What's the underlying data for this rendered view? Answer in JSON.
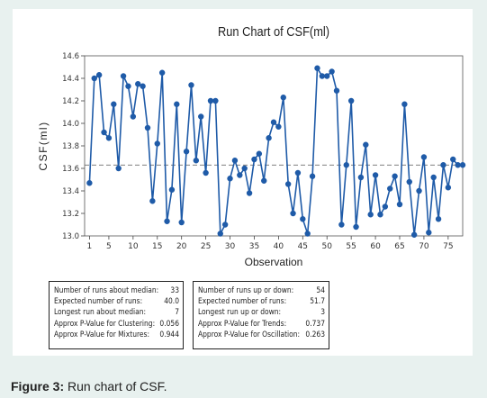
{
  "chart_data": {
    "type": "line",
    "title": "Run Chart of CSF(ml)",
    "xlabel": "Observation",
    "ylabel": "CSF(ml)",
    "xlim": [
      0,
      78
    ],
    "ylim": [
      13.0,
      14.6
    ],
    "xticks": [
      "1",
      "5",
      "10",
      "15",
      "20",
      "25",
      "30",
      "35",
      "40",
      "45",
      "50",
      "55",
      "60",
      "65",
      "70",
      "75"
    ],
    "xtick_values": [
      1,
      5,
      10,
      15,
      20,
      25,
      30,
      35,
      40,
      45,
      50,
      55,
      60,
      65,
      70,
      75
    ],
    "yticks": [
      "13.0",
      "13.2",
      "13.4",
      "13.6",
      "13.8",
      "14.0",
      "14.2",
      "14.4",
      "14.6"
    ],
    "ytick_values": [
      13.0,
      13.2,
      13.4,
      13.6,
      13.8,
      14.0,
      14.2,
      14.4,
      14.6
    ],
    "median": 13.63,
    "grid": false,
    "series": [
      {
        "color": "#1f5ba8",
        "x": [
          1,
          2,
          3,
          4,
          5,
          6,
          7,
          8,
          9,
          10,
          11,
          12,
          13,
          14,
          15,
          16,
          17,
          18,
          19,
          20,
          21,
          22,
          23,
          24,
          25,
          26,
          27,
          28,
          29,
          30,
          31,
          32,
          33,
          34,
          35,
          36,
          37,
          38,
          39,
          40,
          41,
          42,
          43,
          44,
          45,
          46,
          47,
          48,
          49,
          50,
          51,
          52,
          53,
          54,
          55,
          56,
          57,
          58,
          59,
          60,
          61,
          62,
          63,
          64,
          65,
          66,
          67,
          68,
          69,
          70,
          71,
          72,
          73,
          74,
          75,
          76,
          77,
          78
        ],
        "values": [
          13.47,
          14.4,
          14.43,
          13.92,
          13.87,
          14.17,
          13.6,
          14.42,
          14.33,
          14.06,
          14.35,
          14.33,
          13.96,
          13.31,
          13.82,
          14.45,
          13.13,
          13.41,
          14.17,
          13.12,
          13.75,
          14.34,
          13.67,
          14.06,
          13.56,
          14.2,
          14.2,
          13.02,
          13.1,
          13.51,
          13.67,
          13.54,
          13.6,
          13.38,
          13.68,
          13.73,
          13.49,
          13.87,
          14.01,
          13.97,
          14.23,
          13.46,
          13.2,
          13.56,
          13.15,
          13.02,
          13.53,
          14.49,
          14.42,
          14.42,
          14.46,
          14.29,
          13.1,
          13.63,
          14.2,
          13.08,
          13.52,
          13.81,
          13.19,
          13.54,
          13.19,
          13.26,
          13.42,
          13.53,
          13.28,
          14.17,
          13.48,
          13.01,
          13.4,
          13.7,
          13.03,
          13.52,
          13.15,
          13.63,
          13.43,
          13.68,
          13.63,
          13.63
        ]
      }
    ]
  },
  "stats": {
    "left": [
      {
        "label": "Number of runs about median:",
        "value": "33"
      },
      {
        "label": "Expected number of runs:",
        "value": "40.0"
      },
      {
        "label": "Longest run about median:",
        "value": "7"
      },
      {
        "label": "Approx P-Value for Clustering:",
        "value": "0.056"
      },
      {
        "label": "Approx P-Value for Mixtures:",
        "value": "0.944"
      }
    ],
    "right": [
      {
        "label": "Number of runs up or down:",
        "value": "54"
      },
      {
        "label": "Expected number of runs:",
        "value": "51.7"
      },
      {
        "label": "Longest run up or down:",
        "value": "3"
      },
      {
        "label": "Approx P-Value for Trends:",
        "value": "0.737"
      },
      {
        "label": "Approx P-Value for Oscillation:",
        "value": "0.263"
      }
    ]
  },
  "caption": {
    "prefix": "Figure 3:",
    "text": " Run chart of CSF."
  }
}
